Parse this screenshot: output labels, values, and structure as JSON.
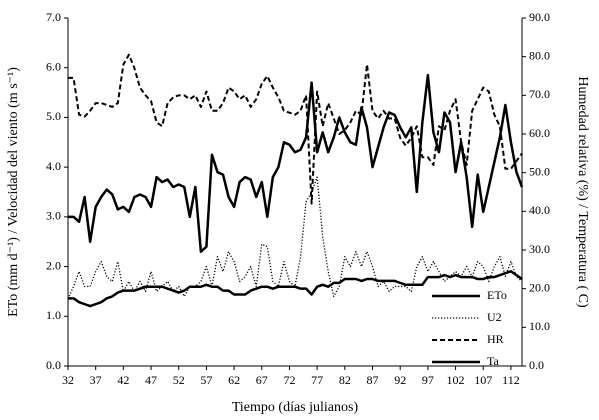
{
  "chart_data": {
    "type": "line",
    "xlabel": "Tiempo (días julianos)",
    "ylabel": "ETo (mm d⁻¹) / Velocidad del viento (m s⁻¹)",
    "y2label": "Humedad relativa (%) / Temperatura ( C)",
    "legend": "lower right",
    "xlim": [
      32,
      114
    ],
    "xticks": [
      32,
      37,
      42,
      47,
      52,
      57,
      62,
      67,
      72,
      77,
      82,
      87,
      92,
      97,
      102,
      107,
      112
    ],
    "ylim": [
      0,
      7
    ],
    "yticks": [
      {
        "value": 0,
        "label": "0.0"
      },
      {
        "value": 1,
        "label": "1.0"
      },
      {
        "value": 2,
        "label": "2.0"
      },
      {
        "value": 3,
        "label": "3.0"
      },
      {
        "value": 4,
        "label": "4.0"
      },
      {
        "value": 5,
        "label": "5.0"
      },
      {
        "value": 6,
        "label": "6.0"
      },
      {
        "value": 7,
        "label": "7.0"
      }
    ],
    "y2lim": [
      0,
      90
    ],
    "y2ticks": [
      {
        "value": 0,
        "label": "0.0"
      },
      {
        "value": 10,
        "label": "10.0"
      },
      {
        "value": 20,
        "label": "20.0"
      },
      {
        "value": 30,
        "label": "30.0"
      },
      {
        "value": 40,
        "label": "40.0"
      },
      {
        "value": 50,
        "label": "50.0"
      },
      {
        "value": 60,
        "label": "60.0"
      },
      {
        "value": 70,
        "label": "70.0"
      },
      {
        "value": 80,
        "label": "80.0"
      },
      {
        "value": 90,
        "label": "90.0"
      }
    ],
    "x": [
      32,
      33,
      34,
      35,
      36,
      37,
      38,
      39,
      40,
      41,
      42,
      43,
      44,
      45,
      46,
      47,
      48,
      49,
      50,
      51,
      52,
      53,
      54,
      55,
      56,
      57,
      58,
      59,
      60,
      61,
      62,
      63,
      64,
      65,
      66,
      67,
      68,
      69,
      70,
      71,
      72,
      73,
      74,
      75,
      76,
      77,
      78,
      79,
      80,
      81,
      82,
      83,
      84,
      85,
      86,
      87,
      88,
      89,
      90,
      91,
      92,
      93,
      94,
      95,
      96,
      97,
      98,
      99,
      100,
      101,
      102,
      103,
      104,
      105,
      106,
      107,
      108,
      109,
      110,
      111,
      112,
      113,
      114
    ],
    "series": [
      {
        "name": "ETo",
        "color": "#000000",
        "style": "solid",
        "values": [
          3.0,
          3.0,
          2.9,
          3.4,
          2.5,
          3.2,
          3.4,
          3.55,
          3.45,
          3.15,
          3.2,
          3.1,
          3.4,
          3.45,
          3.4,
          3.2,
          3.8,
          3.7,
          3.75,
          3.6,
          3.65,
          3.6,
          3.0,
          3.6,
          2.3,
          2.4,
          4.25,
          3.9,
          3.85,
          3.4,
          3.2,
          3.7,
          3.8,
          3.75,
          3.4,
          3.7,
          3.0,
          3.8,
          4.0,
          4.5,
          4.45,
          4.3,
          4.35,
          4.6,
          5.7,
          4.3,
          4.7,
          4.3,
          4.6,
          5.0,
          4.7,
          4.5,
          4.45,
          5.2,
          4.8,
          4.0,
          4.4,
          4.8,
          5.1,
          5.05,
          4.8,
          4.6,
          4.8,
          3.5,
          4.9,
          5.85,
          4.7,
          4.3,
          5.1,
          4.9,
          3.9,
          4.5,
          3.8,
          2.8,
          3.85,
          3.1,
          3.6,
          4.1,
          4.6,
          5.25,
          4.5,
          3.9,
          3.6
        ]
      },
      {
        "name": "U2",
        "color": "#000000",
        "style": "dotted",
        "values": [
          1.35,
          1.6,
          1.9,
          1.6,
          1.6,
          1.9,
          2.1,
          1.8,
          1.7,
          2.1,
          1.5,
          1.7,
          1.5,
          1.7,
          1.5,
          1.9,
          1.5,
          1.6,
          1.7,
          1.5,
          1.6,
          1.4,
          1.6,
          1.6,
          1.7,
          2.0,
          1.6,
          2.2,
          1.9,
          2.3,
          2.1,
          1.7,
          1.8,
          2.0,
          1.6,
          2.45,
          2.4,
          1.7,
          1.6,
          2.1,
          1.7,
          1.6,
          2.2,
          3.3,
          3.5,
          3.8,
          2.6,
          1.9,
          1.4,
          1.6,
          2.2,
          2.0,
          2.3,
          2.0,
          2.3,
          2.0,
          1.6,
          1.7,
          1.5,
          1.6,
          1.6,
          1.6,
          1.5,
          2.0,
          2.2,
          1.9,
          2.1,
          1.9,
          1.7,
          1.8,
          1.9,
          1.8,
          2.0,
          1.8,
          2.1,
          2.0,
          1.7,
          2.0,
          2.2,
          1.8,
          2.1,
          1.8,
          1.7
        ]
      },
      {
        "name": "HR",
        "color": "#000000",
        "style": "dashed",
        "axis": "y2",
        "values": [
          74.5,
          74.5,
          65,
          64.5,
          66,
          68,
          68,
          67.5,
          67,
          68,
          78,
          80.5,
          77,
          72,
          70,
          68.5,
          63,
          62,
          68,
          69.5,
          70,
          70,
          69,
          70,
          67,
          71,
          66,
          66,
          68,
          72,
          71,
          69,
          70,
          67,
          69,
          73,
          75,
          72,
          69.5,
          66,
          65.5,
          65,
          66,
          70,
          42,
          71,
          62,
          68,
          64,
          60,
          61,
          63,
          66,
          65,
          78,
          66,
          64,
          66,
          64,
          64,
          59,
          57,
          59,
          62,
          54,
          54,
          52,
          62,
          61,
          66,
          69,
          58,
          52,
          66,
          69,
          72,
          71,
          65,
          62,
          51,
          51,
          53,
          55
        ]
      },
      {
        "name": "Ta",
        "color": "#000000",
        "style": "solid",
        "axis": "y2",
        "values": [
          17.5,
          17.5,
          16.5,
          16,
          15.5,
          16,
          16.5,
          17.5,
          18,
          19,
          19.5,
          19.5,
          19.5,
          20,
          20.5,
          20.5,
          20.5,
          20.5,
          20,
          19.5,
          19,
          19.5,
          20.5,
          20.5,
          20.5,
          21,
          20.5,
          20.5,
          19.5,
          19.5,
          18.5,
          18.5,
          18.5,
          19.5,
          20,
          20.5,
          20.5,
          20,
          20.5,
          20.5,
          20.5,
          20.5,
          20,
          20,
          18.5,
          20.5,
          21,
          20.5,
          21.5,
          21.5,
          22.5,
          22.5,
          22.5,
          22,
          22.5,
          22.5,
          22,
          22,
          22,
          22,
          21.5,
          21,
          21,
          21,
          21,
          23,
          23,
          23,
          23.5,
          23,
          23.5,
          23,
          23,
          23,
          22.5,
          22.5,
          23,
          23,
          23.5,
          24,
          24.5,
          23.5,
          22.5
        ]
      }
    ]
  }
}
